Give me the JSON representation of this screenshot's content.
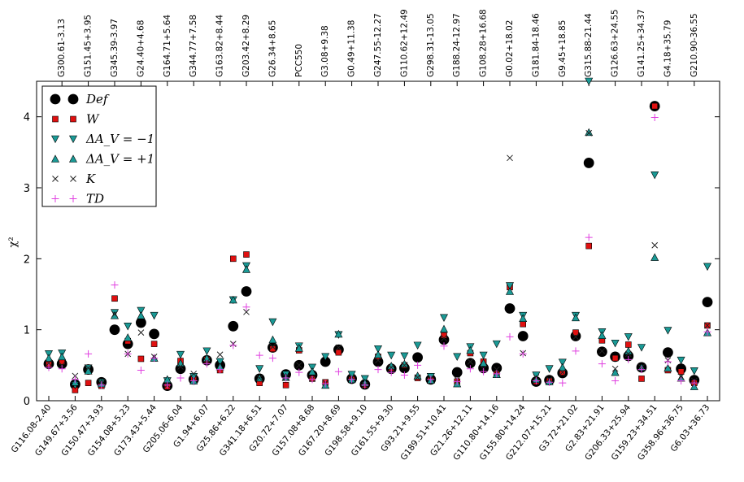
{
  "chart_data": {
    "type": "scatter",
    "ylabel": "χ²",
    "ylim": [
      0,
      4.5
    ],
    "yticks": [
      0,
      1,
      2,
      3,
      4
    ],
    "categories_bottom": [
      "G116.08-2.40",
      "G149.67+3.56",
      "G150.47+3.93",
      "G154.08+5.23",
      "G173.43+5.44",
      "G205.06-6.04",
      "G1.94+6.07",
      "G25.86+6.22",
      "G341.18+6.51",
      "G20.72+7.07",
      "G157.08+8.68",
      "G167.20+8.69",
      "G198.58+9.10",
      "G161.55+9.30",
      "G93.21+9.55",
      "G189.51+10.41",
      "G21.26+12.11",
      "G110.80+14.16",
      "G155.80+14.24",
      "G212.07+15.21",
      "G3.72+21.02",
      "G2.83+21.91",
      "G206.33+25.94",
      "G159.23+34.51",
      "G358.96+36.75",
      "G6.03+36.73"
    ],
    "categories_top": [
      "G300.61-3.13",
      "G151.45+3.95",
      "G345.39-3.97",
      "G24.40+4.68",
      "G164.71+5.64",
      "G344.77+7.58",
      "G163.82+8.44",
      "G203.42+8.29",
      "G26.34+8.65",
      "PCC550",
      "G3.08+9.38",
      "G0.49+11.38",
      "G247.55-12.27",
      "G110.62+12.49",
      "G298.31-13.05",
      "G188.24-12.97",
      "G108.28+16.68",
      "G0.02+18.02",
      "G181.84-18.46",
      "G9.45+18.85",
      "G315.88-21.44",
      "G126.63+24.55",
      "G141.25+34.37",
      "G4.18+35.79",
      "G210.90-36.55"
    ],
    "legend_location": "upper-left",
    "series": [
      {
        "name": "Def",
        "label": "Def",
        "marker": "circle",
        "color": "#000000",
        "values": [
          0.52,
          0.52,
          0.23,
          0.44,
          0.26,
          1.0,
          0.8,
          1.1,
          0.94,
          0.21,
          0.45,
          0.3,
          0.57,
          0.5,
          1.05,
          1.54,
          0.31,
          0.75,
          0.37,
          0.5,
          0.36,
          0.55,
          0.72,
          0.31,
          0.23,
          0.55,
          0.45,
          0.46,
          0.61,
          0.3,
          0.86,
          0.4,
          0.53,
          0.46,
          0.46,
          1.3,
          0.91,
          0.27,
          0.29,
          0.39,
          0.91,
          3.35,
          0.69,
          0.62,
          0.63,
          0.47,
          4.15,
          0.68,
          0.45,
          0.29,
          1.39
        ]
      },
      {
        "name": "W",
        "label": "W",
        "marker": "square",
        "color": "#e01010",
        "values": [
          0.52,
          0.55,
          0.15,
          0.25,
          0.21,
          1.44,
          0.84,
          0.59,
          0.8,
          0.2,
          0.56,
          0.3,
          0.58,
          0.43,
          2.0,
          2.06,
          0.25,
          0.73,
          0.22,
          0.71,
          0.31,
          0.26,
          0.68,
          0.3,
          0.22,
          0.62,
          0.46,
          0.5,
          0.32,
          0.29,
          0.92,
          0.27,
          0.67,
          0.55,
          0.38,
          1.6,
          1.08,
          0.27,
          0.28,
          0.4,
          0.96,
          2.18,
          0.85,
          0.6,
          0.79,
          0.31,
          4.15,
          0.43,
          0.41,
          0.25,
          1.06
        ]
      },
      {
        "name": "dAv-1",
        "label": "ΔA_V = −1",
        "marker": "triangle-down",
        "color": "#1a9a96",
        "values": [
          0.66,
          0.67,
          0.22,
          0.46,
          0.26,
          1.24,
          1.05,
          1.27,
          1.2,
          0.28,
          0.65,
          0.34,
          0.7,
          0.55,
          1.42,
          1.9,
          0.45,
          1.11,
          0.37,
          0.77,
          0.47,
          0.62,
          0.93,
          0.37,
          0.31,
          0.73,
          0.64,
          0.63,
          0.78,
          0.34,
          1.17,
          0.62,
          0.76,
          0.64,
          0.8,
          1.62,
          1.2,
          0.36,
          0.45,
          0.54,
          1.2,
          4.5,
          0.97,
          0.81,
          0.9,
          0.75,
          3.18,
          0.99,
          0.57,
          0.42,
          1.89
        ]
      },
      {
        "name": "dAv+1",
        "label": "ΔA_V = +1",
        "marker": "triangle-up",
        "color": "#1a9a96",
        "values": [
          0.6,
          0.62,
          0.26,
          0.42,
          0.24,
          1.2,
          0.89,
          1.2,
          0.6,
          0.3,
          0.53,
          0.28,
          0.6,
          0.48,
          1.42,
          1.85,
          0.32,
          0.86,
          0.33,
          0.74,
          0.41,
          0.22,
          0.94,
          0.3,
          0.25,
          0.65,
          0.49,
          0.52,
          0.35,
          0.29,
          1.01,
          0.24,
          0.71,
          0.53,
          0.37,
          1.54,
          1.16,
          0.3,
          0.27,
          0.47,
          1.17,
          3.78,
          0.92,
          0.4,
          0.7,
          0.47,
          2.02,
          0.46,
          0.32,
          0.2,
          0.96
        ]
      },
      {
        "name": "K",
        "label": "K",
        "marker": "x",
        "color": "#222222",
        "values": [
          0.53,
          0.5,
          0.35,
          0.46,
          0.26,
          1.22,
          0.66,
          0.96,
          0.62,
          0.22,
          0.48,
          0.38,
          0.55,
          0.65,
          0.8,
          1.25,
          0.32,
          0.76,
          0.33,
          0.5,
          0.31,
          0.25,
          0.75,
          0.33,
          0.22,
          0.57,
          0.47,
          0.5,
          0.33,
          0.32,
          0.88,
          0.3,
          0.55,
          0.45,
          0.44,
          3.42,
          0.67,
          0.33,
          0.3,
          0.4,
          0.9,
          3.77,
          0.7,
          0.45,
          0.66,
          0.47,
          2.19,
          0.57,
          0.34,
          0.28,
          1.06
        ]
      },
      {
        "name": "TD",
        "label": "TD",
        "marker": "plus",
        "color": "#e040e0",
        "values": [
          0.47,
          0.45,
          0.3,
          0.66,
          0.22,
          1.63,
          0.66,
          0.43,
          0.6,
          0.22,
          0.32,
          0.28,
          0.52,
          0.44,
          0.78,
          1.32,
          0.64,
          0.6,
          0.32,
          0.4,
          0.3,
          0.24,
          0.41,
          0.3,
          0.22,
          0.44,
          0.4,
          0.36,
          0.5,
          0.3,
          0.77,
          0.27,
          0.45,
          0.41,
          0.38,
          0.9,
          0.66,
          0.28,
          0.26,
          0.25,
          0.7,
          2.3,
          0.52,
          0.28,
          0.58,
          0.44,
          3.99,
          0.55,
          0.28,
          0.25,
          0.97
        ]
      }
    ]
  }
}
